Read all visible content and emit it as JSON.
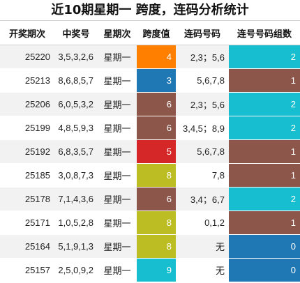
{
  "title": "近10期星期一 跨度，连码分析统计",
  "headers": [
    "开奖期次",
    "中奖号",
    "星期次",
    "跨度值",
    "连码号码",
    "连号号码组数"
  ],
  "colors": {
    "orange": "#ff8000",
    "blue": "#1f77b4",
    "brown": "#8c564b",
    "red": "#d62728",
    "olive": "#bcbd22",
    "cyan": "#17becf"
  },
  "rows": [
    {
      "issue": "25220",
      "numbers": "3,5,3,2,6",
      "weekday": "星期一",
      "span": "4",
      "span_color": "orange",
      "consecutive": "2,3；5,6",
      "groups": "2",
      "groups_color": "cyan"
    },
    {
      "issue": "25213",
      "numbers": "8,6,8,5,7",
      "weekday": "星期一",
      "span": "3",
      "span_color": "blue",
      "consecutive": "5,6,7,8",
      "groups": "1",
      "groups_color": "brown"
    },
    {
      "issue": "25206",
      "numbers": "6,0,5,3,2",
      "weekday": "星期一",
      "span": "6",
      "span_color": "brown",
      "consecutive": "2,3；5,6",
      "groups": "2",
      "groups_color": "cyan"
    },
    {
      "issue": "25199",
      "numbers": "4,8,5,9,3",
      "weekday": "星期一",
      "span": "6",
      "span_color": "brown",
      "consecutive": "3,4,5；8,9",
      "groups": "2",
      "groups_color": "cyan"
    },
    {
      "issue": "25192",
      "numbers": "6,8,3,5,7",
      "weekday": "星期一",
      "span": "5",
      "span_color": "red",
      "consecutive": "5,6,7,8",
      "groups": "1",
      "groups_color": "brown"
    },
    {
      "issue": "25185",
      "numbers": "3,0,8,7,3",
      "weekday": "星期一",
      "span": "8",
      "span_color": "olive",
      "consecutive": "7,8",
      "groups": "1",
      "groups_color": "brown"
    },
    {
      "issue": "25178",
      "numbers": "7,1,4,3,6",
      "weekday": "星期一",
      "span": "6",
      "span_color": "brown",
      "consecutive": "3,4；6,7",
      "groups": "2",
      "groups_color": "cyan"
    },
    {
      "issue": "25171",
      "numbers": "1,0,5,2,8",
      "weekday": "星期一",
      "span": "8",
      "span_color": "olive",
      "consecutive": "0,1,2",
      "groups": "1",
      "groups_color": "brown"
    },
    {
      "issue": "25164",
      "numbers": "5,1,9,1,3",
      "weekday": "星期一",
      "span": "8",
      "span_color": "olive",
      "consecutive": "无",
      "groups": "0",
      "groups_color": "blue"
    },
    {
      "issue": "25157",
      "numbers": "2,5,0,9,2",
      "weekday": "星期一",
      "span": "9",
      "span_color": "cyan",
      "consecutive": "无",
      "groups": "0",
      "groups_color": "blue"
    }
  ]
}
